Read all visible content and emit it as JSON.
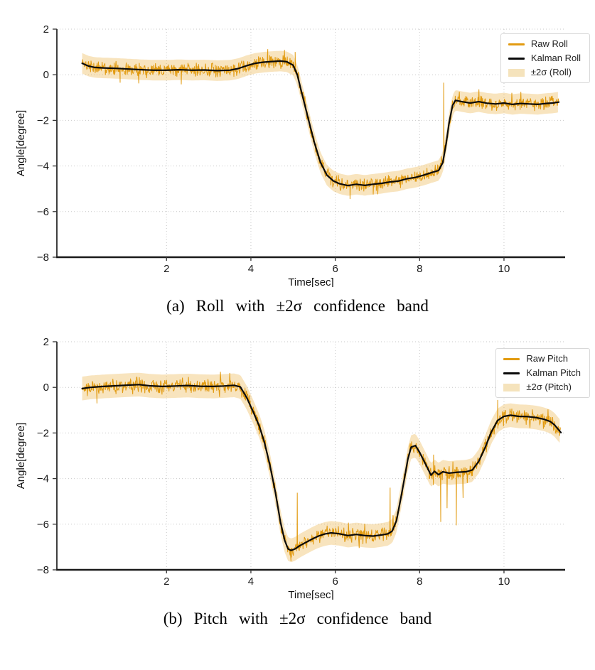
{
  "page": {
    "background": "#ffffff"
  },
  "figures": [
    {
      "name": "roll",
      "caption": "(a) Roll with ±2σ confidence band",
      "legend": {
        "items": [
          {
            "swatch": "line",
            "color": "#E29B11",
            "label": "Raw Roll"
          },
          {
            "swatch": "line",
            "color": "#0a0a0a",
            "label": "Kalman Roll"
          },
          {
            "swatch": "patch",
            "color": "#F5E3BC",
            "label": "±2σ (Roll)"
          }
        ]
      }
    },
    {
      "name": "pitch",
      "caption": "(b) Pitch with ±2σ confidence band",
      "legend": {
        "items": [
          {
            "swatch": "line",
            "color": "#E29B11",
            "label": "Raw Pitch"
          },
          {
            "swatch": "line",
            "color": "#0a0a0a",
            "label": "Kalman Pitch"
          },
          {
            "swatch": "patch",
            "color": "#F5E3BC",
            "label": "±2σ (Pitch)"
          }
        ]
      }
    }
  ],
  "chart_data": [
    {
      "type": "line",
      "title": "(a) Roll with ±2σ confidence band",
      "xlabel": "Time[sec]",
      "ylabel": "Angle[degree]",
      "xlim": [
        -0.6,
        11.45
      ],
      "ylim": [
        -8,
        2
      ],
      "xticks": [
        2,
        4,
        6,
        8,
        10
      ],
      "yticks": [
        2,
        0,
        -2,
        -4,
        -6,
        -8
      ],
      "grid": true,
      "legend_position": "upper right",
      "series": [
        {
          "name": "Raw Roll",
          "color": "#E29B11",
          "render": "noisy",
          "derived_from": "kalman",
          "noise_amplitude": 0.22,
          "spikes": [
            [
              0.9,
              -0.35
            ],
            [
              2.35,
              -0.42
            ],
            [
              4.4,
              1.12
            ],
            [
              5.05,
              1.0
            ],
            [
              6.35,
              -5.45
            ],
            [
              6.9,
              -5.25
            ],
            [
              8.57,
              -0.35
            ],
            [
              10.4,
              -0.75
            ]
          ]
        },
        {
          "name": "Kalman Roll",
          "color": "#0a0a0a",
          "points": [
            [
              0,
              0.5
            ],
            [
              0.15,
              0.38
            ],
            [
              0.3,
              0.32
            ],
            [
              0.5,
              0.3
            ],
            [
              0.8,
              0.28
            ],
            [
              1.1,
              0.25
            ],
            [
              1.4,
              0.22
            ],
            [
              1.7,
              0.2
            ],
            [
              2.0,
              0.2
            ],
            [
              2.3,
              0.22
            ],
            [
              2.6,
              0.2
            ],
            [
              2.9,
              0.21
            ],
            [
              3.2,
              0.18
            ],
            [
              3.5,
              0.2
            ],
            [
              3.7,
              0.27
            ],
            [
              3.9,
              0.4
            ],
            [
              4.1,
              0.5
            ],
            [
              4.3,
              0.55
            ],
            [
              4.5,
              0.58
            ],
            [
              4.7,
              0.6
            ],
            [
              4.85,
              0.57
            ],
            [
              5.0,
              0.42
            ],
            [
              5.1,
              0.0
            ],
            [
              5.2,
              -0.75
            ],
            [
              5.35,
              -1.85
            ],
            [
              5.5,
              -2.95
            ],
            [
              5.65,
              -3.85
            ],
            [
              5.8,
              -4.4
            ],
            [
              5.95,
              -4.65
            ],
            [
              6.1,
              -4.78
            ],
            [
              6.3,
              -4.86
            ],
            [
              6.5,
              -4.8
            ],
            [
              6.7,
              -4.85
            ],
            [
              6.9,
              -4.8
            ],
            [
              7.1,
              -4.76
            ],
            [
              7.3,
              -4.7
            ],
            [
              7.5,
              -4.66
            ],
            [
              7.7,
              -4.56
            ],
            [
              7.9,
              -4.5
            ],
            [
              8.1,
              -4.4
            ],
            [
              8.3,
              -4.28
            ],
            [
              8.45,
              -4.2
            ],
            [
              8.55,
              -3.85
            ],
            [
              8.63,
              -3.0
            ],
            [
              8.7,
              -2.1
            ],
            [
              8.78,
              -1.35
            ],
            [
              8.85,
              -1.12
            ],
            [
              9.0,
              -1.18
            ],
            [
              9.2,
              -1.24
            ],
            [
              9.4,
              -1.18
            ],
            [
              9.6,
              -1.25
            ],
            [
              9.8,
              -1.28
            ],
            [
              10.0,
              -1.24
            ],
            [
              10.2,
              -1.3
            ],
            [
              10.4,
              -1.26
            ],
            [
              10.6,
              -1.28
            ],
            [
              10.8,
              -1.3
            ],
            [
              11.0,
              -1.26
            ],
            [
              11.15,
              -1.24
            ],
            [
              11.3,
              -1.2
            ]
          ]
        },
        {
          "name": "±2σ (Roll)",
          "color": "#E9AE3A",
          "opacity": 0.33,
          "halfwidth": 0.45,
          "around": "kalman"
        }
      ]
    },
    {
      "type": "line",
      "title": "(b) Pitch with ±2σ confidence band",
      "xlabel": "Time[sec]",
      "ylabel": "Angle[degree]",
      "xlim": [
        -0.6,
        11.45
      ],
      "ylim": [
        -8,
        2
      ],
      "xticks": [
        2,
        4,
        6,
        8,
        10
      ],
      "yticks": [
        2,
        0,
        -2,
        -4,
        -6,
        -8
      ],
      "grid": true,
      "legend_position": "upper right",
      "series": [
        {
          "name": "Raw Pitch",
          "color": "#E29B11",
          "render": "noisy",
          "derived_from": "kalman",
          "noise_amplitude": 0.24,
          "spikes": [
            [
              0.35,
              -0.7
            ],
            [
              4.95,
              -7.62
            ],
            [
              5.1,
              -4.62
            ],
            [
              7.3,
              -4.4
            ],
            [
              8.33,
              -2.95
            ],
            [
              8.5,
              -5.9
            ],
            [
              8.65,
              -5.3
            ],
            [
              8.87,
              -6.05
            ],
            [
              9.03,
              -4.85
            ],
            [
              9.85,
              -0.55
            ]
          ]
        },
        {
          "name": "Kalman Pitch",
          "color": "#0a0a0a",
          "points": [
            [
              0,
              -0.05
            ],
            [
              0.2,
              0.0
            ],
            [
              0.5,
              0.04
            ],
            [
              0.8,
              0.07
            ],
            [
              1.1,
              0.1
            ],
            [
              1.35,
              0.12
            ],
            [
              1.6,
              0.07
            ],
            [
              1.9,
              0.04
            ],
            [
              2.2,
              0.06
            ],
            [
              2.5,
              0.08
            ],
            [
              2.8,
              0.05
            ],
            [
              3.1,
              0.04
            ],
            [
              3.35,
              0.06
            ],
            [
              3.6,
              0.09
            ],
            [
              3.75,
              0.02
            ],
            [
              3.9,
              -0.45
            ],
            [
              4.05,
              -1.05
            ],
            [
              4.2,
              -1.7
            ],
            [
              4.32,
              -2.4
            ],
            [
              4.45,
              -3.4
            ],
            [
              4.58,
              -4.6
            ],
            [
              4.7,
              -5.9
            ],
            [
              4.8,
              -6.7
            ],
            [
              4.88,
              -7.08
            ],
            [
              4.95,
              -7.15
            ],
            [
              5.05,
              -7.08
            ],
            [
              5.15,
              -6.95
            ],
            [
              5.3,
              -6.8
            ],
            [
              5.45,
              -6.65
            ],
            [
              5.6,
              -6.52
            ],
            [
              5.75,
              -6.43
            ],
            [
              5.9,
              -6.38
            ],
            [
              6.1,
              -6.42
            ],
            [
              6.3,
              -6.5
            ],
            [
              6.5,
              -6.45
            ],
            [
              6.7,
              -6.5
            ],
            [
              6.9,
              -6.52
            ],
            [
              7.1,
              -6.47
            ],
            [
              7.25,
              -6.42
            ],
            [
              7.35,
              -6.3
            ],
            [
              7.45,
              -5.85
            ],
            [
              7.55,
              -4.9
            ],
            [
              7.65,
              -3.9
            ],
            [
              7.72,
              -3.15
            ],
            [
              7.8,
              -2.62
            ],
            [
              7.9,
              -2.55
            ],
            [
              8.0,
              -2.85
            ],
            [
              8.15,
              -3.4
            ],
            [
              8.27,
              -3.85
            ],
            [
              8.35,
              -3.68
            ],
            [
              8.45,
              -3.83
            ],
            [
              8.55,
              -3.7
            ],
            [
              8.7,
              -3.76
            ],
            [
              8.9,
              -3.72
            ],
            [
              9.1,
              -3.7
            ],
            [
              9.25,
              -3.62
            ],
            [
              9.4,
              -3.25
            ],
            [
              9.55,
              -2.65
            ],
            [
              9.7,
              -1.95
            ],
            [
              9.85,
              -1.45
            ],
            [
              10.0,
              -1.27
            ],
            [
              10.15,
              -1.22
            ],
            [
              10.35,
              -1.27
            ],
            [
              10.55,
              -1.28
            ],
            [
              10.75,
              -1.32
            ],
            [
              10.95,
              -1.4
            ],
            [
              11.1,
              -1.5
            ],
            [
              11.2,
              -1.65
            ],
            [
              11.35,
              -1.98
            ]
          ]
        },
        {
          "name": "±2σ (Pitch)",
          "color": "#E9AE3A",
          "opacity": 0.33,
          "halfwidth": 0.52,
          "around": "kalman"
        }
      ]
    }
  ]
}
